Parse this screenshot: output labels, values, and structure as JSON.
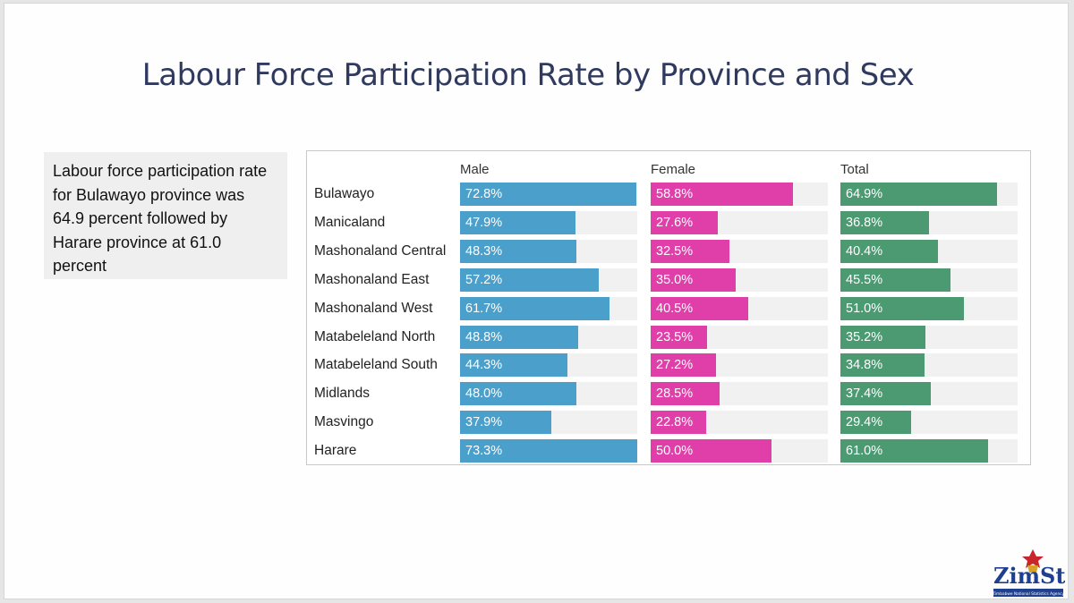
{
  "slide": {
    "title": "Labour Force Participation Rate by Province and Sex",
    "note": "Labour force participation rate  for Bulawayo province was 64.9 percent followed by Harare province at 61.0 percent"
  },
  "logo": {
    "text": "ZimStat",
    "subtext": "Zimbabwe National Statistics Agency"
  },
  "chart_data": {
    "type": "bar",
    "orientation": "horizontal",
    "categories": [
      "Bulawayo",
      "Manicaland",
      "Mashonaland Central",
      "Mashonaland East",
      "Mashonaland West",
      "Matabeleland North",
      "Matabeleland South",
      "Midlands",
      "Masvingo",
      "Harare"
    ],
    "series": [
      {
        "name": "Male",
        "color": "#4b9fcb",
        "values": [
          72.8,
          47.9,
          48.3,
          57.2,
          61.7,
          48.8,
          44.3,
          48.0,
          37.9,
          73.3
        ],
        "labels": [
          "72.8%",
          "47.9%",
          "48.3%",
          "57.2%",
          "61.7%",
          "48.8%",
          "44.3%",
          "48.0%",
          "37.9%",
          "73.3%"
        ]
      },
      {
        "name": "Female",
        "color": "#e03faa",
        "values": [
          58.8,
          27.6,
          32.5,
          35.0,
          40.5,
          23.5,
          27.2,
          28.5,
          22.8,
          50.0
        ],
        "labels": [
          "58.8%",
          "27.6%",
          "32.5%",
          "35.0%",
          "40.5%",
          "23.5%",
          "27.2%",
          "28.5%",
          "22.8%",
          "50.0%"
        ]
      },
      {
        "name": "Total",
        "color": "#4b9a72",
        "values": [
          64.9,
          36.8,
          40.4,
          45.5,
          51.0,
          35.2,
          34.8,
          37.4,
          29.4,
          61.0
        ],
        "labels": [
          "64.9%",
          "36.8%",
          "40.4%",
          "45.5%",
          "51.0%",
          "35.2%",
          "34.8%",
          "37.4%",
          "29.4%",
          "61.0%"
        ]
      }
    ],
    "xlim": [
      0,
      73.3
    ],
    "grid": false,
    "legend": "column headers"
  }
}
